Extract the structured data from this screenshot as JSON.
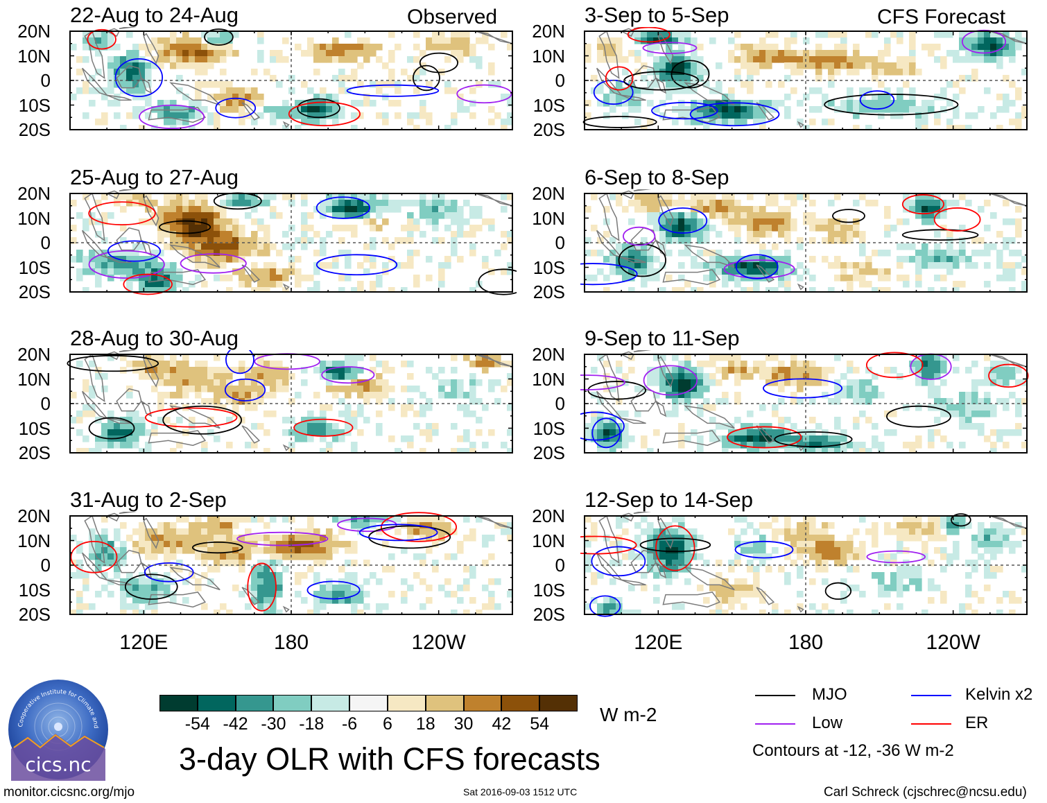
{
  "chart_data": {
    "type": "heatmap",
    "title": "3-day OLR with CFS forecasts",
    "left_column_label": "Observed",
    "right_column_label": "CFS Forecast",
    "y_ticks": [
      "20N",
      "10N",
      "0",
      "10S",
      "20S"
    ],
    "ylim": [
      -20,
      20
    ],
    "x_ticks": [
      "120E",
      "180",
      "120W"
    ],
    "xlim": [
      90,
      270
    ],
    "panels": [
      {
        "title": "22-Aug to 24-Aug",
        "kind": "observed"
      },
      {
        "title": "25-Aug to 27-Aug",
        "kind": "observed"
      },
      {
        "title": "28-Aug to 30-Aug",
        "kind": "observed"
      },
      {
        "title": "31-Aug to 2-Sep",
        "kind": "observed"
      },
      {
        "title": "3-Sep to 5-Sep",
        "kind": "forecast"
      },
      {
        "title": "6-Sep to 8-Sep",
        "kind": "forecast"
      },
      {
        "title": "9-Sep to 11-Sep",
        "kind": "forecast"
      },
      {
        "title": "12-Sep to 14-Sep",
        "kind": "forecast"
      }
    ],
    "colorbar": {
      "units": "W m-2",
      "tick_labels": [
        "-54",
        "-42",
        "-30",
        "-18",
        "-6",
        "6",
        "18",
        "30",
        "42",
        "54"
      ],
      "colors": [
        "#003c30",
        "#01665e",
        "#35978f",
        "#80cdc1",
        "#c7eae5",
        "#f5f5f5",
        "#f6e8c3",
        "#dfc27d",
        "#bf812d",
        "#8c510a",
        "#543005"
      ]
    },
    "legend": [
      {
        "label": "MJO",
        "color": "#000000"
      },
      {
        "label": "Kelvin x2",
        "color": "#0000ff"
      },
      {
        "label": "Low",
        "color": "#a020f0"
      },
      {
        "label": "ER",
        "color": "#ff0000"
      }
    ],
    "contours_note": "Contours at -12, -36 W m-2"
  },
  "logo_text": "cics.nc",
  "logo_arc_text": "Cooperative Institute for Climate and Satellites",
  "footer": {
    "left": "monitor.cicsnc.org/mjo",
    "center": "Sat 2016-09-03 1512 UTC",
    "right": "Carl Schreck (cjschrec@ncsu.edu)"
  }
}
